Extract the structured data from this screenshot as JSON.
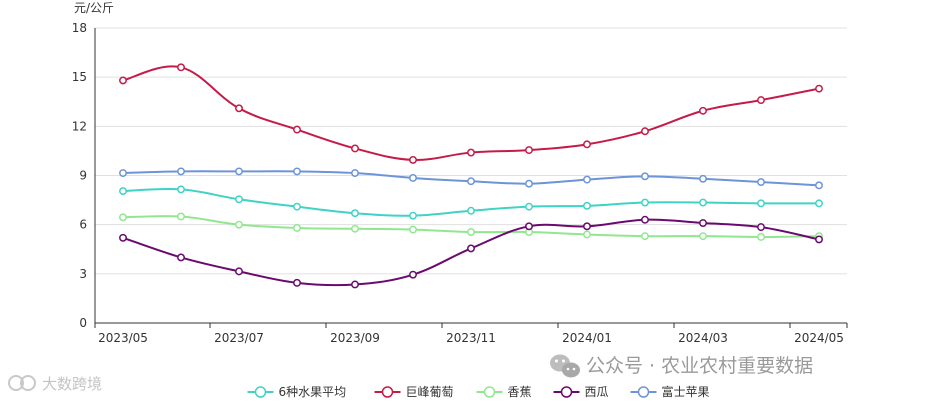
{
  "chart_data": {
    "type": "line",
    "ylabel": "元/公斤",
    "ylim": [
      0,
      18
    ],
    "yticks": [
      0,
      3,
      6,
      9,
      12,
      15,
      18
    ],
    "x": [
      "2023/05",
      "2023/06",
      "2023/07",
      "2023/08",
      "2023/09",
      "2023/10",
      "2023/11",
      "2023/12",
      "2024/01",
      "2024/02",
      "2024/03",
      "2024/04",
      "2024/05"
    ],
    "xtick_labels": [
      "2023/05",
      "2023/07",
      "2023/09",
      "2023/11",
      "2024/01",
      "2024/03",
      "2024/05"
    ],
    "grid": "horizontal",
    "legend_position": "bottom-center",
    "series": [
      {
        "name": "6种水果平均",
        "color": "#3fd3c6",
        "values": [
          8.05,
          8.15,
          7.55,
          7.1,
          6.7,
          6.55,
          6.85,
          7.1,
          7.15,
          7.35,
          7.35,
          7.3,
          7.3
        ]
      },
      {
        "name": "巨峰葡萄",
        "color": "#c41b47",
        "values": [
          14.8,
          15.6,
          13.1,
          11.8,
          10.65,
          9.95,
          10.4,
          10.55,
          10.9,
          11.7,
          12.95,
          13.6,
          14.3
        ]
      },
      {
        "name": "香蕉",
        "color": "#90e88e",
        "values": [
          6.45,
          6.5,
          6.0,
          5.8,
          5.75,
          5.7,
          5.55,
          5.55,
          5.4,
          5.3,
          5.3,
          5.25,
          5.3
        ]
      },
      {
        "name": "西瓜",
        "color": "#6a0a6e",
        "values": [
          5.2,
          4.0,
          3.15,
          2.45,
          2.35,
          2.95,
          4.55,
          5.9,
          5.9,
          6.3,
          6.1,
          5.85,
          5.1
        ]
      },
      {
        "name": "富士苹果",
        "color": "#6d94d8",
        "values": [
          9.15,
          9.25,
          9.25,
          9.25,
          9.15,
          8.85,
          8.65,
          8.5,
          8.75,
          8.95,
          8.8,
          8.6,
          8.4
        ]
      }
    ]
  },
  "watermark": {
    "center": "公众号 · 农业农村重要数据",
    "left": "大数跨境"
  }
}
